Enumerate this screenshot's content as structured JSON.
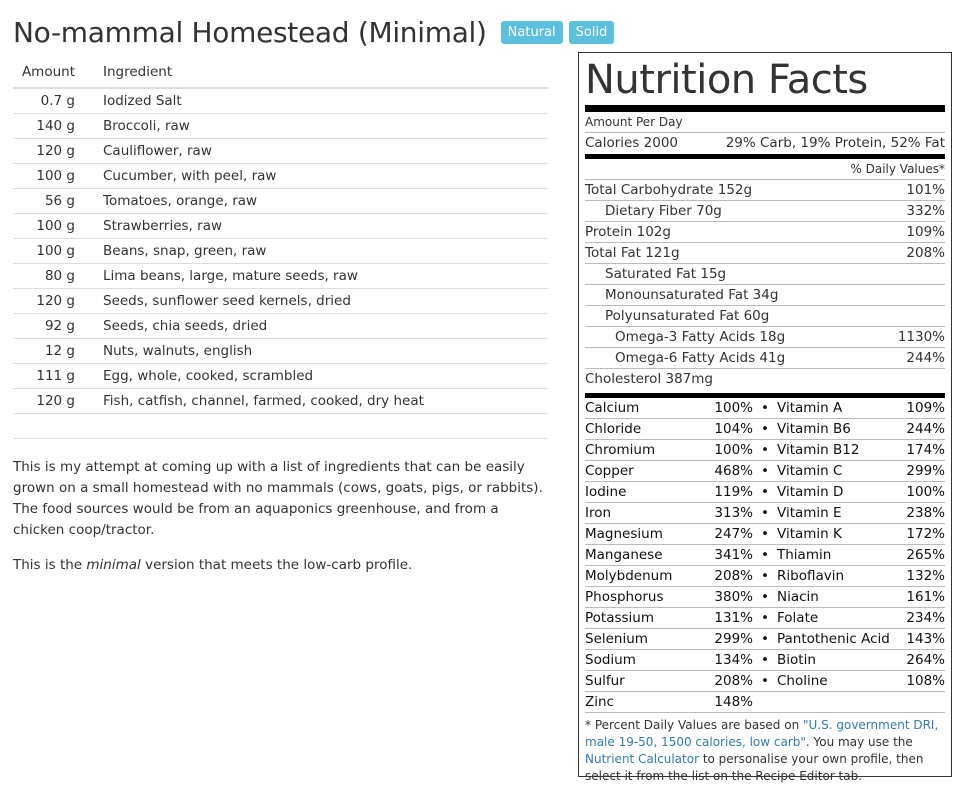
{
  "title": "No-mammal Homestead (Minimal)",
  "badges": [
    "Natural",
    "Solid"
  ],
  "table": {
    "headers": [
      "Amount",
      "Ingredient"
    ],
    "rows": [
      [
        "0.7 g",
        "Iodized Salt"
      ],
      [
        "140 g",
        "Broccoli, raw"
      ],
      [
        "120 g",
        "Cauliflower, raw"
      ],
      [
        "100 g",
        "Cucumber, with peel, raw"
      ],
      [
        "56 g",
        "Tomatoes, orange, raw"
      ],
      [
        "100 g",
        "Strawberries, raw"
      ],
      [
        "100 g",
        "Beans, snap, green, raw"
      ],
      [
        "80 g",
        "Lima beans, large, mature seeds, raw"
      ],
      [
        "120 g",
        "Seeds, sunflower seed kernels, dried"
      ],
      [
        "92 g",
        "Seeds, chia seeds, dried"
      ],
      [
        "12 g",
        "Nuts, walnuts, english"
      ],
      [
        "111 g",
        "Egg, whole, cooked, scrambled"
      ],
      [
        "120 g",
        "Fish, catfish, channel, farmed, cooked, dry heat"
      ]
    ]
  },
  "description": {
    "p1": "This is my attempt at coming up with a list of ingredients that can be easily grown on a small homestead with no mammals (cows, goats, pigs, or rabbits). The food sources would be from an aquaponics greenhouse, and from a chicken coop/tractor.",
    "p2_pre": "This is the ",
    "p2_em": "minimal",
    "p2_post": " version that meets the low-carb profile."
  },
  "nutrition": {
    "title": "Nutrition Facts",
    "amount_per": "Amount Per Day",
    "calories": "Calories 2000",
    "ratio": "29% Carb, 19% Protein, 52% Fat",
    "dv_header": "% Daily Values*",
    "macros": [
      {
        "label": "Total Carbohydrate 152g",
        "dv": "101%",
        "indent": 0
      },
      {
        "label": "Dietary Fiber 70g",
        "dv": "332%",
        "indent": 1
      },
      {
        "label": "Protein 102g",
        "dv": "109%",
        "indent": 0
      },
      {
        "label": "Total Fat 121g",
        "dv": "208%",
        "indent": 0
      },
      {
        "label": "Saturated Fat 15g",
        "dv": "",
        "indent": 1
      },
      {
        "label": "Monounsaturated Fat 34g",
        "dv": "",
        "indent": 1
      },
      {
        "label": "Polyunsaturated Fat 60g",
        "dv": "",
        "indent": 1
      },
      {
        "label": "Omega-3 Fatty Acids 18g",
        "dv": "1130%",
        "indent": 2
      },
      {
        "label": "Omega-6 Fatty Acids 41g",
        "dv": "244%",
        "indent": 2
      },
      {
        "label": "Cholesterol 387mg",
        "dv": "",
        "indent": 0
      }
    ],
    "micros": [
      [
        "Calcium",
        "100%",
        "Vitamin A",
        "109%"
      ],
      [
        "Chloride",
        "104%",
        "Vitamin B6",
        "244%"
      ],
      [
        "Chromium",
        "100%",
        "Vitamin B12",
        "174%"
      ],
      [
        "Copper",
        "468%",
        "Vitamin C",
        "299%"
      ],
      [
        "Iodine",
        "119%",
        "Vitamin D",
        "100%"
      ],
      [
        "Iron",
        "313%",
        "Vitamin E",
        "238%"
      ],
      [
        "Magnesium",
        "247%",
        "Vitamin K",
        "172%"
      ],
      [
        "Manganese",
        "341%",
        "Thiamin",
        "265%"
      ],
      [
        "Molybdenum",
        "208%",
        "Riboflavin",
        "132%"
      ],
      [
        "Phosphorus",
        "380%",
        "Niacin",
        "161%"
      ],
      [
        "Potassium",
        "131%",
        "Folate",
        "234%"
      ],
      [
        "Selenium",
        "299%",
        "Pantothenic Acid",
        "143%"
      ],
      [
        "Sodium",
        "134%",
        "Biotin",
        "264%"
      ],
      [
        "Sulfur",
        "208%",
        "Choline",
        "108%"
      ],
      [
        "Zinc",
        "148%",
        "",
        ""
      ]
    ],
    "footnote": {
      "pre": "* Percent Daily Values are based on ",
      "link1": "\"U.S. government DRI, male 19-50, 1500 calories, low carb\"",
      "mid": ". You may use the ",
      "link2": "Nutrient Calculator",
      "post": " to personalise your own profile, then select it from the list on the Recipe Editor tab."
    }
  }
}
